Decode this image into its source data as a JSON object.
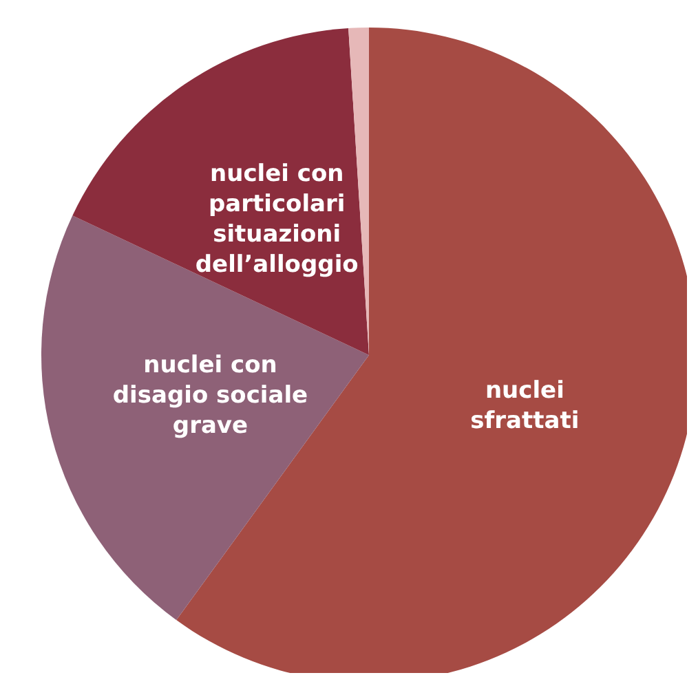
{
  "chart_data": {
    "type": "pie",
    "categories": [
      "nuclei sfrattati",
      "nuclei con disagio sociale grave",
      "nuclei con particolari situazioni dell’alloggio",
      null
    ],
    "values": [
      60,
      22,
      17,
      1
    ],
    "colors": [
      "#a64b44",
      "#8e6177",
      "#8b2d3d",
      "#e6b8b8"
    ],
    "legend": false
  }
}
